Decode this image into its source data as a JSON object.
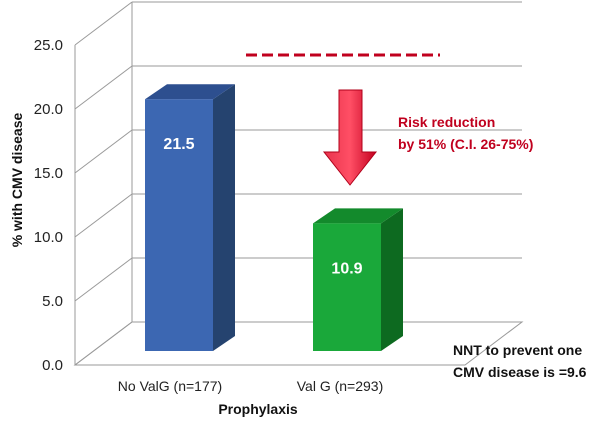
{
  "chart_data": {
    "type": "bar",
    "categories": [
      "No ValG  (n=177)",
      "Val G (n=293)"
    ],
    "values": [
      21.5,
      10.9
    ],
    "value_labels": [
      "21.5",
      "10.9"
    ],
    "xlabel": "Prophylaxis",
    "ylabel": "% with CMV disease",
    "ylim": [
      0,
      25
    ],
    "yticks": [
      "0.0",
      "5.0",
      "10.0",
      "15.0",
      "20.0",
      "25.0"
    ],
    "grid": true,
    "bar_colors": [
      "#3c67b2",
      "#1aa83a"
    ],
    "annotation_color": "#c0001e",
    "annotations": {
      "risk_line1": "Risk reduction",
      "risk_line2": "by 51% (C.I. 26-75%)",
      "nnt_line1": "NNT to prevent one",
      "nnt_line2": "CMV disease is =9.6"
    }
  }
}
